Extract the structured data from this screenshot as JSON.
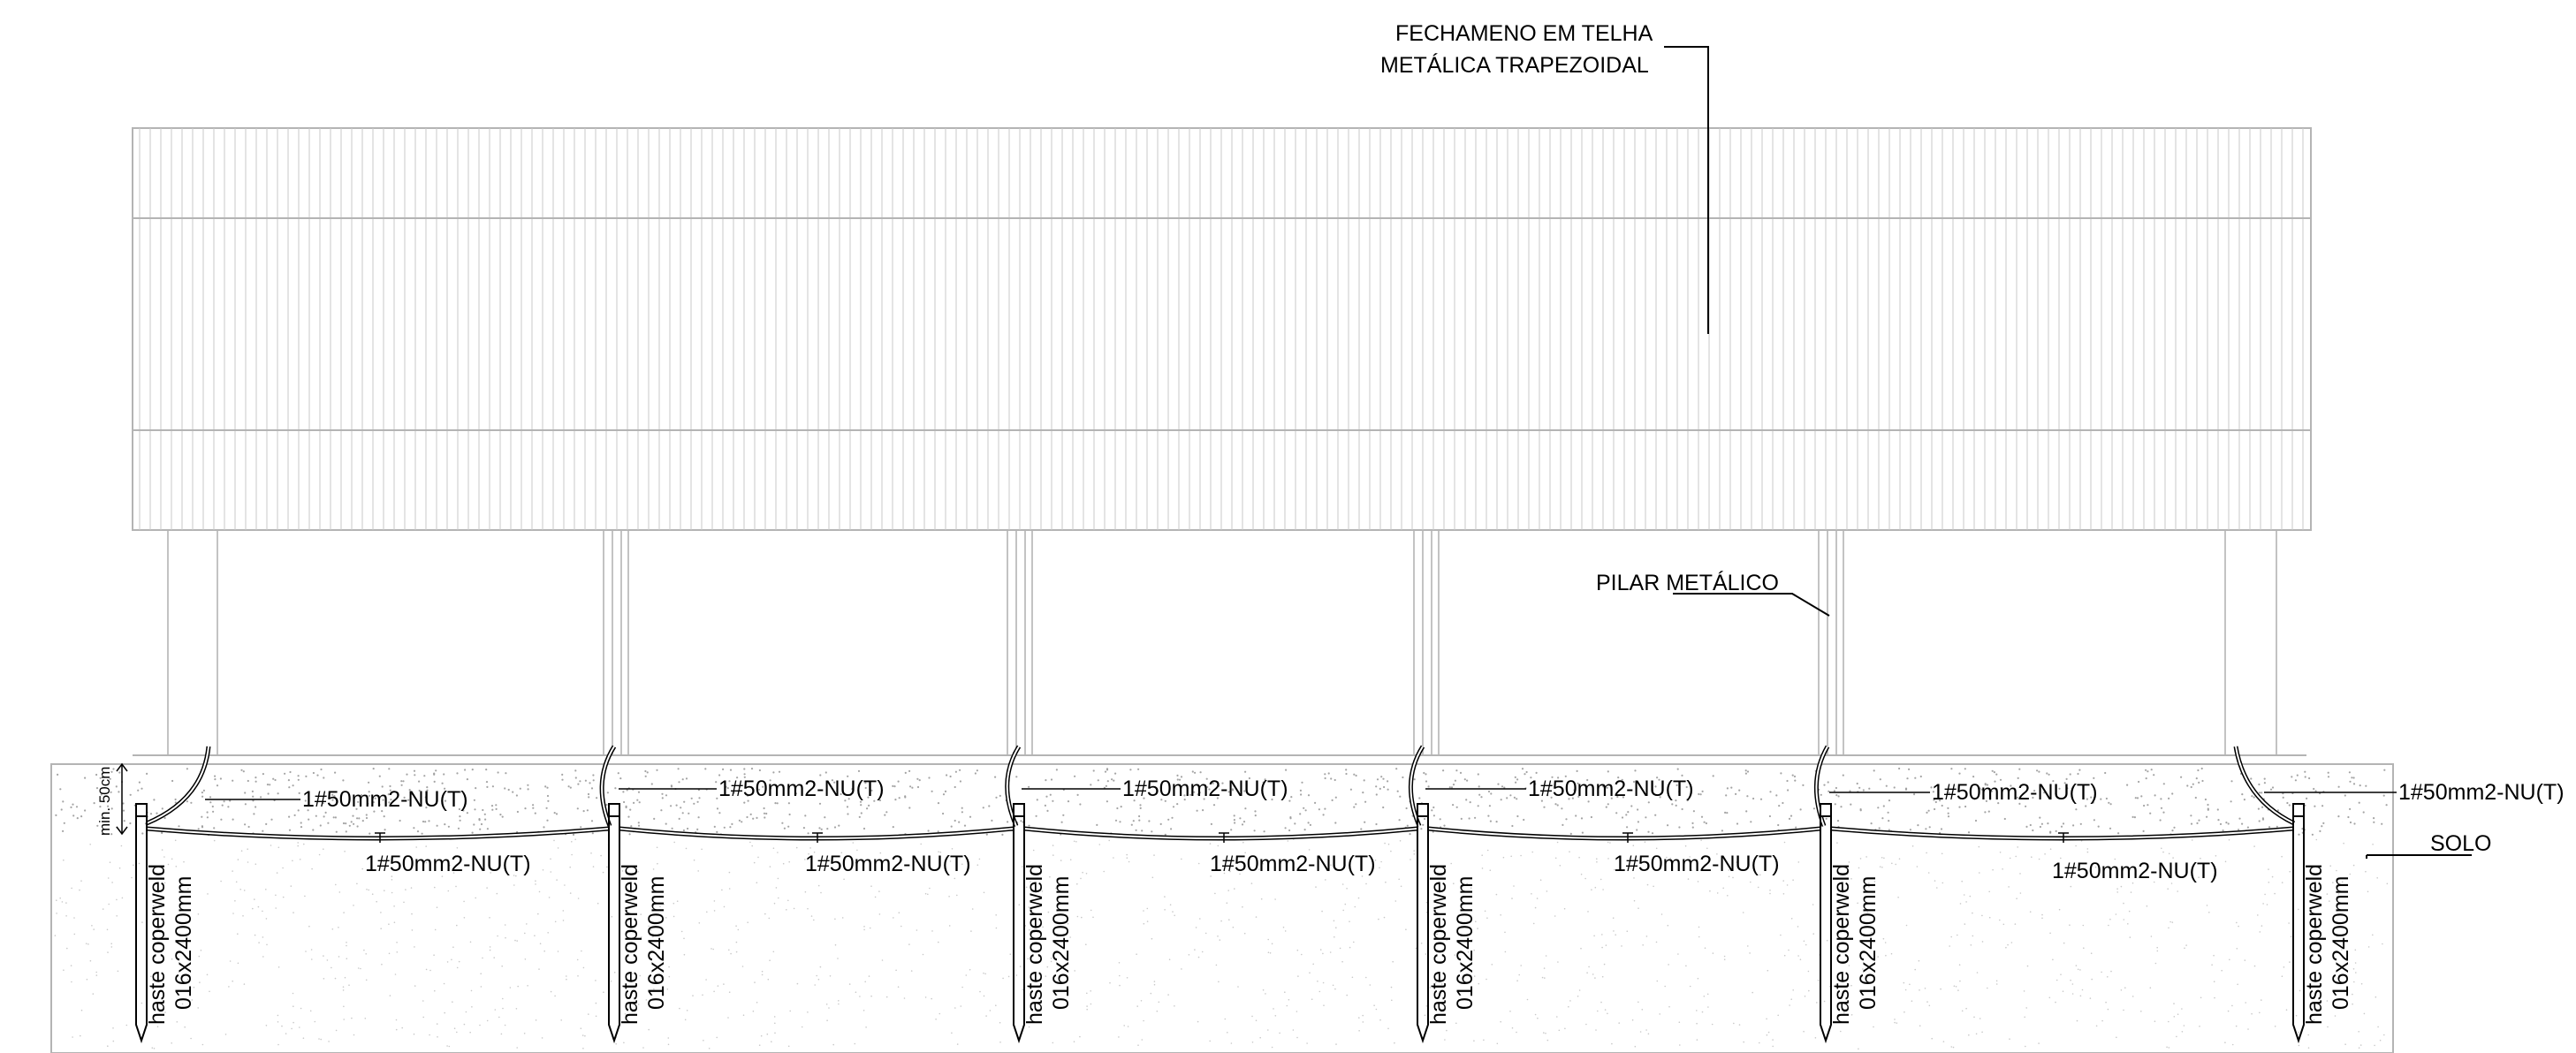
{
  "title_note": {
    "line1": "FECHAMENO EM TELHA",
    "line2": "METÁLICA TRAPEZOIDAL"
  },
  "pillar_label": "PILAR METÁLICO",
  "depth_note": "min. 50cm",
  "soil_label": "SOLO",
  "upper_cable_labels": [
    "1#50mm2-NU(T)",
    "1#50mm2-NU(T)",
    "1#50mm2-NU(T)",
    "1#50mm2-NU(T)",
    "1#50mm2-NU(T)",
    "1#50mm2-NU(T)"
  ],
  "lower_cable_labels": [
    "1#50mm2-NU(T)",
    "1#50mm2-NU(T)",
    "1#50mm2-NU(T)",
    "1#50mm2-NU(T)",
    "1#50mm2-NU(T)"
  ],
  "rods": [
    {
      "line1": "haste coperweld",
      "line2": "016x2400mm"
    },
    {
      "line1": "haste coperweld",
      "line2": "016x2400mm"
    },
    {
      "line1": "haste coperweld",
      "line2": "016x2400mm"
    },
    {
      "line1": "haste coperweld",
      "line2": "016x2400mm"
    },
    {
      "line1": "haste coperweld",
      "line2": "016x2400mm"
    },
    {
      "line1": "haste coperweld",
      "line2": "016x2400mm"
    }
  ],
  "colors": {
    "line": "#000000",
    "light_line": "#b4b4b4",
    "cladding": "#c8c8c8",
    "soil_dots": "#9a9a9a"
  }
}
